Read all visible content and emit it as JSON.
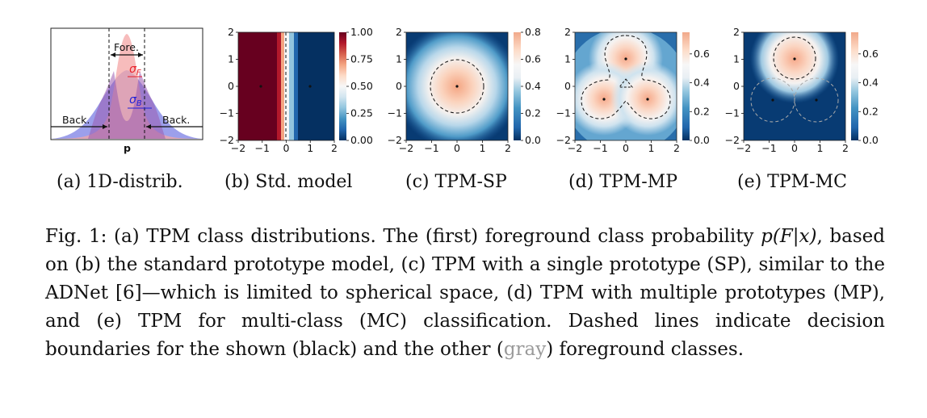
{
  "panel_captions": {
    "a": "(a) 1D-distrib.",
    "b": "(b) Std. model",
    "c": "(c) TPM-SP",
    "d": "(d) TPM-MP",
    "e": "(e) TPM-MC"
  },
  "panel_a": {
    "fore_label": "Fore.",
    "back_left": "Back.",
    "back_right": "Back.",
    "sigma_f": "σ",
    "sigma_f_sub": "F",
    "sigma_b": "σ",
    "sigma_b_sub": "B",
    "xlabel": "p"
  },
  "axis_ticks": [
    "−2",
    "−1",
    "0",
    "1",
    "2"
  ],
  "colorbars": {
    "b": [
      "1.00",
      "0.75",
      "0.50",
      "0.25",
      "0.00"
    ],
    "c": [
      "0.8",
      "0.6",
      "0.4",
      "0.2",
      "0.0"
    ],
    "d": [
      "0.6",
      "0.4",
      "0.2",
      "0.0"
    ],
    "e": [
      "0.6",
      "0.4",
      "0.2",
      "0.0"
    ]
  },
  "caption": {
    "p1": "Fig. 1: (a) TPM class distributions. The (first) foreground class probability ",
    "math1": "p(F|x)",
    "p2": ", based on (b) the standard prototype model, (c) TPM with a single prototype (SP), similar to the ADNet [6]—which is limited to spherical space, (d) TPM with multiple prototypes (MP), and (e) TPM for multi-class (MC) classification. Dashed lines indicate decision boundaries for the shown (black) and the other (",
    "gray_word": "gray",
    "p3": ") foreground classes."
  },
  "colors": {
    "deep_red": "#67001f",
    "deep_blue": "#053061",
    "fore_pink": "#f4a6a6",
    "back_blue": "#8b8ee8",
    "sigma_red": "#e8202a",
    "sigma_blue": "#2020d8"
  }
}
